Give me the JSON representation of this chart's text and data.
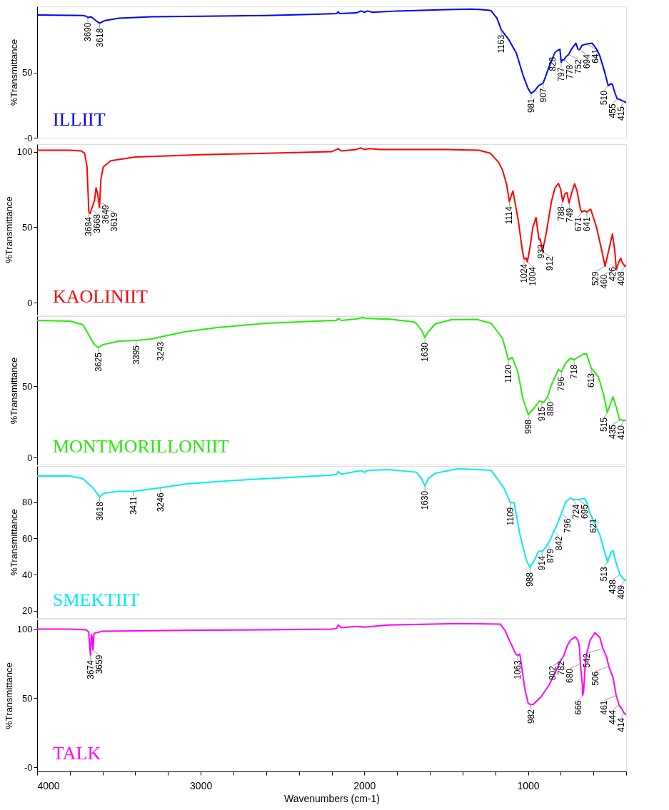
{
  "chart_data": [
    {
      "type": "line",
      "ylabel": "%Transmittance",
      "xlim": [
        4000,
        400
      ],
      "ylim": [
        0,
        101
      ],
      "yticks": [
        {
          "value": 0,
          "label": "-0"
        },
        50
      ],
      "tick_labels": "y",
      "series": [
        {
          "name": "ILLIIT",
          "color": "#0000ff",
          "x": [
            4000,
            3800,
            3720,
            3700,
            3690,
            3670,
            3640,
            3618,
            3590,
            3500,
            3300,
            3000,
            2600,
            2300,
            2170,
            2160,
            2150,
            2050,
            2020,
            2000,
            1980,
            1950,
            1800,
            1500,
            1350,
            1280,
            1226,
            1190,
            1163,
            1120,
            1071,
            1030,
            1000,
            981,
            960,
            935,
            907,
            870,
            835,
            820,
            805,
            797,
            790,
            778,
            770,
            752,
            730,
            707,
            694,
            685,
            670,
            655,
            641,
            608,
            585,
            561,
            530,
            510,
            495,
            484,
            470,
            455,
            440,
            425,
            415,
            400
          ],
          "values": [
            94.4,
            94.2,
            94,
            93.5,
            92.5,
            93,
            90,
            88,
            90,
            92,
            93,
            93.5,
            94,
            95,
            95.5,
            97,
            95.5,
            96,
            97.5,
            96.5,
            97.5,
            96.5,
            97.5,
            98.5,
            99,
            98.5,
            97.8,
            92,
            83,
            76,
            65,
            48,
            38,
            34,
            36,
            40,
            42,
            55,
            65.6,
            67,
            68,
            58,
            60,
            60,
            62,
            64,
            69,
            72.7,
            68,
            67.7,
            71,
            71.7,
            72,
            72.7,
            69,
            63,
            50,
            40,
            41.4,
            41,
            35,
            30,
            29.5,
            28.5,
            28,
            27
          ]
        }
      ],
      "annotations": [
        {
          "text": "3690",
          "x": 3690,
          "y": 92.5
        },
        {
          "text": "3618",
          "x": 3618,
          "y": 88
        },
        {
          "text": "1163",
          "x": 1163,
          "y": 83
        },
        {
          "text": "981",
          "x": 981,
          "y": 34
        },
        {
          "text": "907",
          "x": 907,
          "y": 42
        },
        {
          "text": "828",
          "x": 828,
          "y": 66
        },
        {
          "text": "797",
          "x": 797,
          "y": 58
        },
        {
          "text": "778",
          "x": 778,
          "y": 60
        },
        {
          "text": "752",
          "x": 752,
          "y": 64
        },
        {
          "text": "694",
          "x": 694,
          "y": 68
        },
        {
          "text": "641",
          "x": 641,
          "y": 72
        },
        {
          "text": "510",
          "x": 510,
          "y": 40
        },
        {
          "text": "455",
          "x": 455,
          "y": 30
        },
        {
          "text": "415",
          "x": 415,
          "y": 28
        }
      ]
    },
    {
      "type": "line",
      "ylabel": "%Transmittance",
      "xlim": [
        4000,
        400
      ],
      "ylim": [
        -8,
        105
      ],
      "yticks": [
        0,
        50,
        100
      ],
      "tick_labels": "y",
      "series": [
        {
          "name": "KAOLINIIT",
          "color": "#ff0000",
          "x": [
            4000,
            3800,
            3730,
            3710,
            3695,
            3684,
            3676,
            3668,
            3660,
            3649,
            3640,
            3630,
            3619,
            3610,
            3595,
            3550,
            3400,
            3000,
            2600,
            2200,
            2160,
            2140,
            2050,
            2020,
            2000,
            1970,
            1900,
            1500,
            1300,
            1230,
            1180,
            1156,
            1130,
            1114,
            1092,
            1060,
            1035,
            1024,
            1010,
            1004,
            990,
            970,
            951,
            933,
            925,
            912,
            890,
            857,
            835,
            814,
            800,
            788,
            775,
            762,
            749,
            735,
            715,
            700,
            680,
            671,
            655,
            641,
            617,
            583,
            550,
            529,
            510,
            484,
            470,
            460,
            445,
            433,
            426,
            408,
            400
          ],
          "values": [
            101,
            101,
            100.5,
            99,
            90,
            60,
            59,
            62,
            64,
            68,
            76,
            72,
            63,
            82,
            90,
            94,
            96.5,
            98,
            99,
            100,
            102,
            100.5,
            101.5,
            102.5,
            101.5,
            102,
            101.5,
            101.5,
            101,
            99,
            93,
            88,
            78,
            67,
            74,
            55,
            35,
            29,
            29.5,
            27,
            35,
            50,
            56.4,
            42,
            42,
            34,
            45,
            66.8,
            76,
            79,
            75,
            67,
            72,
            73,
            66,
            72,
            78.7,
            74,
            62,
            60,
            61,
            60,
            62,
            50.7,
            35,
            24,
            33,
            45.5,
            35,
            22,
            27,
            29.4,
            27,
            24,
            25
          ]
        }
      ],
      "annotations": [
        {
          "text": "3684",
          "x": 3684,
          "y": 60
        },
        {
          "text": "3668",
          "x": 3668,
          "y": 62
        },
        {
          "text": "3649",
          "x": 3649,
          "y": 68
        },
        {
          "text": "3619",
          "x": 3619,
          "y": 63
        },
        {
          "text": "1114",
          "x": 1114,
          "y": 67
        },
        {
          "text": "1024",
          "x": 1024,
          "y": 29
        },
        {
          "text": "1004",
          "x": 1004,
          "y": 27
        },
        {
          "text": "933",
          "x": 933,
          "y": 42
        },
        {
          "text": "912",
          "x": 912,
          "y": 34
        },
        {
          "text": "788",
          "x": 788,
          "y": 67
        },
        {
          "text": "749",
          "x": 749,
          "y": 66
        },
        {
          "text": "671",
          "x": 671,
          "y": 60
        },
        {
          "text": "641",
          "x": 641,
          "y": 60
        },
        {
          "text": "529",
          "x": 529,
          "y": 24
        },
        {
          "text": "460",
          "x": 460,
          "y": 22
        },
        {
          "text": "426",
          "x": 426,
          "y": 27
        },
        {
          "text": "408",
          "x": 408,
          "y": 24
        }
      ]
    },
    {
      "type": "line",
      "ylabel": "%Transmittance",
      "xlim": [
        4000,
        400
      ],
      "ylim": [
        -5,
        99
      ],
      "yticks": [
        0,
        50
      ],
      "tick_labels": "y",
      "series": [
        {
          "name": "MONTMORILLONIIT",
          "color": "#22ee00",
          "x": [
            4000,
            3800,
            3720,
            3680,
            3650,
            3625,
            3600,
            3500,
            3395,
            3300,
            3243,
            3100,
            2900,
            2600,
            2300,
            2170,
            2160,
            2140,
            2050,
            2010,
            1990,
            1900,
            1854,
            1700,
            1683,
            1650,
            1630,
            1610,
            1567,
            1469,
            1311,
            1225,
            1156,
            1120,
            1096,
            1062,
            1032,
            998,
            960,
            930,
            915,
            904,
            880,
            860,
            814,
            796,
            770,
            741,
            718,
            690,
            660,
            642,
            613,
            570,
            540,
            515,
            495,
            480,
            460,
            441,
            435,
            420,
            410,
            400
          ],
          "values": [
            96,
            95.5,
            93,
            85,
            79,
            77,
            79,
            81.5,
            82,
            83,
            84.5,
            88,
            91,
            94,
            95.5,
            96,
            97.5,
            96,
            97,
            98,
            97.5,
            97,
            97,
            95,
            94,
            89,
            84,
            88,
            93.5,
            96.5,
            96.7,
            94,
            83.5,
            68.5,
            70,
            60,
            41.5,
            30,
            35,
            39.5,
            39,
            38.5,
            42.5,
            50,
            61.5,
            60,
            66,
            69.5,
            68.5,
            70.5,
            72.5,
            72.5,
            62.5,
            56.5,
            45,
            31.5,
            38,
            42.5,
            35,
            26.5,
            26.5,
            26,
            26,
            26
          ]
        }
      ],
      "annotations": [
        {
          "text": "3625",
          "x": 3625,
          "y": 77
        },
        {
          "text": "3395",
          "x": 3395,
          "y": 82
        },
        {
          "text": "3243",
          "x": 3243,
          "y": 84.5
        },
        {
          "text": "1630",
          "x": 1630,
          "y": 84
        },
        {
          "text": "1120",
          "x": 1120,
          "y": 68.5
        },
        {
          "text": "998",
          "x": 998,
          "y": 30
        },
        {
          "text": "915",
          "x": 915,
          "y": 39
        },
        {
          "text": "880",
          "x": 880,
          "y": 42.5
        },
        {
          "text": "796",
          "x": 796,
          "y": 60
        },
        {
          "text": "718",
          "x": 718,
          "y": 68.5
        },
        {
          "text": "613",
          "x": 613,
          "y": 62.5
        },
        {
          "text": "515",
          "x": 515,
          "y": 31.5
        },
        {
          "text": "435",
          "x": 435,
          "y": 26.5
        },
        {
          "text": "410",
          "x": 410,
          "y": 26
        }
      ]
    },
    {
      "type": "line",
      "ylabel": "%Transmittance",
      "xlim": [
        4000,
        400
      ],
      "ylim": [
        16,
        100
      ],
      "yticks": [
        20,
        40,
        60,
        80
      ],
      "tick_labels": "y",
      "series": [
        {
          "name": "SMEKTIIT",
          "color": "#00eeee",
          "x": [
            4000,
            3800,
            3720,
            3660,
            3618,
            3590,
            3500,
            3411,
            3330,
            3246,
            3100,
            2800,
            2500,
            2200,
            2170,
            2160,
            2140,
            2020,
            2000,
            1980,
            1854,
            1683,
            1650,
            1630,
            1610,
            1567,
            1426,
            1225,
            1148,
            1109,
            1084,
            1049,
            1010,
            988,
            960,
            935,
            914,
            900,
            879,
            860,
            842,
            820,
            796,
            770,
            741,
            724,
            710,
            695,
            655,
            640,
            621,
            561,
            530,
            513,
            495,
            480,
            460,
            438,
            420,
            409,
            400
          ],
          "values": [
            94.5,
            94.5,
            93,
            88,
            83,
            85,
            86,
            86,
            87,
            88,
            90,
            92,
            93.5,
            95,
            95.5,
            97,
            95.5,
            97.5,
            96.5,
            97.5,
            98,
            96.6,
            93,
            89,
            93,
            96,
            98.5,
            97.6,
            88,
            80,
            79.6,
            62,
            48,
            44,
            48,
            53,
            53,
            54,
            57,
            60,
            64,
            68,
            73.7,
            80,
            82.4,
            81.5,
            81.5,
            81.5,
            82,
            80,
            73.7,
            62,
            52,
            47,
            52,
            53.3,
            46,
            40,
            38,
            37,
            37
          ]
        }
      ],
      "annotations": [
        {
          "text": "3618",
          "x": 3618,
          "y": 83
        },
        {
          "text": "3411",
          "x": 3411,
          "y": 86
        },
        {
          "text": "3246",
          "x": 3246,
          "y": 88
        },
        {
          "text": "1630",
          "x": 1630,
          "y": 89
        },
        {
          "text": "1109",
          "x": 1109,
          "y": 80
        },
        {
          "text": "988",
          "x": 988,
          "y": 44
        },
        {
          "text": "914",
          "x": 914,
          "y": 53
        },
        {
          "text": "879",
          "x": 879,
          "y": 57
        },
        {
          "text": "842",
          "x": 842,
          "y": 64
        },
        {
          "text": "796",
          "x": 796,
          "y": 73.7
        },
        {
          "text": "724",
          "x": 724,
          "y": 81.5
        },
        {
          "text": "695",
          "x": 695,
          "y": 81.5
        },
        {
          "text": "621",
          "x": 621,
          "y": 73.7
        },
        {
          "text": "513",
          "x": 513,
          "y": 47
        },
        {
          "text": "438",
          "x": 438,
          "y": 40
        },
        {
          "text": "409",
          "x": 409,
          "y": 37
        }
      ]
    },
    {
      "type": "line",
      "ylabel": "%Transmittance",
      "xlabel": "Wavenumbers (cm-1)",
      "xlim": [
        4000,
        400
      ],
      "ylim": [
        -3,
        107
      ],
      "yticks": [
        {
          "value": 0,
          "label": "-0"
        },
        50,
        100
      ],
      "xticks": [
        4000,
        {
          "value": 3800,
          "label": null
        },
        {
          "value": 3600,
          "label": null
        },
        {
          "value": 3400,
          "label": null
        },
        {
          "value": 3200,
          "label": null
        },
        3000,
        {
          "value": 2800,
          "label": null
        },
        {
          "value": 2600,
          "label": null
        },
        {
          "value": 2400,
          "label": null
        },
        {
          "value": 2200,
          "label": null
        },
        2000,
        {
          "value": 1800,
          "label": null
        },
        {
          "value": 1600,
          "label": null
        },
        {
          "value": 1400,
          "label": null
        },
        {
          "value": 1200,
          "label": null
        },
        1000,
        {
          "value": 800,
          "label": null
        },
        {
          "value": 600,
          "label": null
        },
        {
          "value": 400,
          "label": null
        }
      ],
      "series": [
        {
          "name": "TALK",
          "color": "#ff00ff",
          "x": [
            4000,
            3800,
            3700,
            3685,
            3674,
            3668,
            3663,
            3659,
            3652,
            3600,
            3200,
            2600,
            2200,
            2170,
            2160,
            2140,
            2050,
            2000,
            1950,
            1854,
            1426,
            1169,
            1140,
            1114,
            1075,
            1063,
            1050,
            1019,
            998,
            982,
            968,
            920,
            869,
            820,
            802,
            782,
            760,
            740,
            711,
            695,
            685,
            680,
            668,
            666,
            660,
            650,
            642,
            620,
            591,
            561,
            542,
            520,
            506,
            480,
            461,
            450,
            444,
            425,
            414,
            400
          ],
          "values": [
            100,
            100,
            99.5,
            98,
            81,
            96,
            94,
            85,
            97,
            98.5,
            99,
            99.5,
            100,
            100.5,
            103,
            101,
            102,
            101.5,
            102,
            103,
            104,
            103.6,
            99,
            92,
            82,
            81,
            82,
            56.4,
            46,
            45.5,
            45.5,
            51,
            60,
            72,
            77,
            80.5,
            88,
            92,
            94.4,
            92,
            87,
            75,
            60,
            52,
            55,
            75,
            82,
            92,
            97.4,
            94,
            86,
            80,
            73,
            65,
            52,
            48,
            45,
            42,
            39.5,
            38
          ]
        }
      ],
      "annotations": [
        {
          "text": "3674",
          "x": 3674,
          "y": 81
        },
        {
          "text": "3659",
          "x": 3659,
          "y": 85
        },
        {
          "text": "1063",
          "x": 1063,
          "y": 81
        },
        {
          "text": "982",
          "x": 982,
          "y": 45.5
        },
        {
          "text": "802",
          "x": 802,
          "y": 77
        },
        {
          "text": "782",
          "x": 782,
          "y": 80.5
        },
        {
          "text": "680",
          "x": 680,
          "y": 75
        },
        {
          "text": "666",
          "x": 666,
          "y": 52
        },
        {
          "text": "542",
          "x": 542,
          "y": 86
        },
        {
          "text": "506",
          "x": 506,
          "y": 73
        },
        {
          "text": "461",
          "x": 461,
          "y": 52
        },
        {
          "text": "444",
          "x": 444,
          "y": 45
        },
        {
          "text": "414",
          "x": 414,
          "y": 39.5
        }
      ]
    }
  ]
}
